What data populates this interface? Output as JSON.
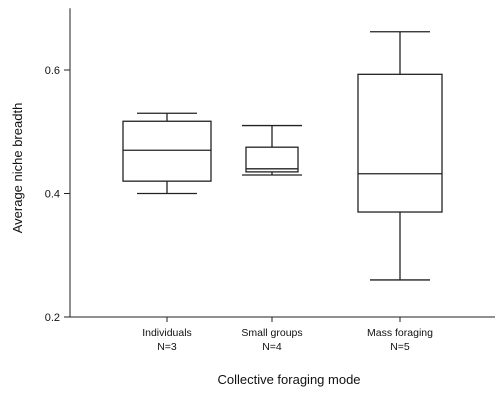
{
  "chart_data": {
    "type": "boxplot",
    "xlabel": "Collective foraging mode",
    "ylabel": "Average niche breadth",
    "ylim": [
      0.2,
      0.7
    ],
    "yticks": [
      0.2,
      0.4,
      0.6
    ],
    "ytick_labels": [
      "0.2",
      "0.4",
      "0.6"
    ],
    "grid": false,
    "categories": [
      {
        "name": "Individuals",
        "n_label": "N=3"
      },
      {
        "name": "Small groups",
        "n_label": "N=4"
      },
      {
        "name": "Mass foraging",
        "n_label": "N=5"
      }
    ],
    "boxes": [
      {
        "whisker_low": 0.4,
        "q1": 0.42,
        "median": 0.47,
        "q3": 0.517,
        "whisker_high": 0.53
      },
      {
        "whisker_low": 0.43,
        "q1": 0.435,
        "median": 0.44,
        "q3": 0.475,
        "whisker_high": 0.51
      },
      {
        "whisker_low": 0.26,
        "q1": 0.37,
        "median": 0.432,
        "q3": 0.593,
        "whisker_high": 0.662
      }
    ],
    "line_color": "#222222"
  }
}
